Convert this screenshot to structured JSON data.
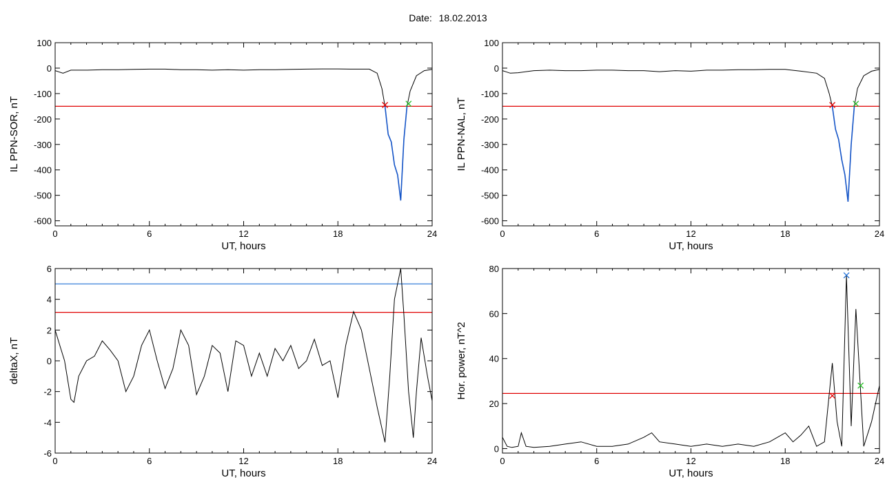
{
  "header": {
    "date_label": "Date:",
    "date_value": "18.02.2013"
  },
  "colors": {
    "threshold_red": "#e00000",
    "threshold_blue": "#1f6fd6",
    "trace": "#000000",
    "highlight_blue": "#1555c8",
    "marker_red": "#e00000",
    "marker_green": "#22bb22",
    "marker_blue": "#1f6fd6"
  },
  "chart_data": [
    {
      "type": "line",
      "xlabel": "UT, hours",
      "ylabel": "IL PPN-SOR, nT",
      "xlim": [
        0,
        24
      ],
      "ylim": [
        -620,
        100
      ],
      "xticks": [
        "0",
        "6",
        "12",
        "18",
        "24"
      ],
      "yticks": [
        "100",
        "0",
        "-100",
        "-200",
        "-300",
        "-400",
        "-500",
        "-600"
      ],
      "hline": {
        "y": -150,
        "color": "red"
      },
      "series": [
        {
          "x": [
            0,
            0.5,
            1,
            2,
            3,
            4,
            5,
            6,
            7,
            8,
            9,
            10,
            11,
            12,
            13,
            14,
            15,
            16,
            17,
            18,
            19,
            20,
            20.5,
            20.8,
            21,
            21.2,
            21.4,
            21.6,
            21.8,
            22,
            22.2,
            22.4,
            22.6,
            23,
            23.5,
            24
          ],
          "y": [
            -10,
            -20,
            -8,
            -8,
            -6,
            -6,
            -5,
            -4,
            -4,
            -6,
            -6,
            -8,
            -6,
            -8,
            -6,
            -6,
            -5,
            -4,
            -3,
            -3,
            -4,
            -4,
            -20,
            -80,
            -150,
            -260,
            -290,
            -380,
            -420,
            -520,
            -280,
            -150,
            -90,
            -30,
            -10,
            -5
          ]
        }
      ],
      "highlight_segment": {
        "x_from": 21.0,
        "x_to": 22.5,
        "color": "blue"
      },
      "markers": [
        {
          "x": 21.0,
          "y": -145,
          "color": "red"
        },
        {
          "x": 22.5,
          "y": -140,
          "color": "green"
        }
      ]
    },
    {
      "type": "line",
      "xlabel": "UT, hours",
      "ylabel": "IL PPN-NAL, nT",
      "xlim": [
        0,
        24
      ],
      "ylim": [
        -620,
        100
      ],
      "xticks": [
        "0",
        "6",
        "12",
        "18",
        "24"
      ],
      "yticks": [
        "100",
        "0",
        "-100",
        "-200",
        "-300",
        "-400",
        "-500",
        "-600"
      ],
      "hline": {
        "y": -150,
        "color": "red"
      },
      "series": [
        {
          "x": [
            0,
            0.5,
            1,
            2,
            3,
            4,
            5,
            6,
            7,
            8,
            9,
            10,
            11,
            12,
            13,
            14,
            15,
            16,
            17,
            18,
            19,
            20,
            20.5,
            20.8,
            21,
            21.2,
            21.4,
            21.6,
            21.8,
            22,
            22.2,
            22.4,
            22.6,
            23,
            23.5,
            24
          ],
          "y": [
            -10,
            -20,
            -18,
            -10,
            -8,
            -10,
            -10,
            -8,
            -8,
            -10,
            -10,
            -14,
            -10,
            -12,
            -8,
            -8,
            -6,
            -6,
            -5,
            -5,
            -12,
            -20,
            -40,
            -100,
            -150,
            -240,
            -280,
            -360,
            -420,
            -525,
            -300,
            -150,
            -80,
            -30,
            -12,
            -5
          ]
        }
      ],
      "highlight_segment": {
        "x_from": 21.0,
        "x_to": 22.5,
        "color": "blue"
      },
      "markers": [
        {
          "x": 21.0,
          "y": -145,
          "color": "red"
        },
        {
          "x": 22.5,
          "y": -140,
          "color": "green"
        }
      ]
    },
    {
      "type": "line",
      "xlabel": "UT, hours",
      "ylabel": "deltaX, nT",
      "xlim": [
        0,
        24
      ],
      "ylim": [
        -6,
        6
      ],
      "xticks": [
        "0",
        "6",
        "12",
        "18",
        "24"
      ],
      "yticks": [
        "6",
        "4",
        "2",
        "0",
        "-2",
        "-4",
        "-6"
      ],
      "hlines": [
        {
          "y": 5.0,
          "color": "blue"
        },
        {
          "y": 3.15,
          "color": "red"
        }
      ],
      "series": [
        {
          "x": [
            0,
            0.3,
            0.6,
            1,
            1.2,
            1.5,
            2,
            2.5,
            3,
            3.5,
            4,
            4.5,
            5,
            5.5,
            6,
            6.5,
            7,
            7.5,
            8,
            8.5,
            9,
            9.5,
            10,
            10.5,
            11,
            11.5,
            12,
            12.5,
            13,
            13.5,
            14,
            14.5,
            15,
            15.5,
            16,
            16.5,
            17,
            17.5,
            18,
            18.5,
            19,
            19.5,
            20,
            20.5,
            21,
            21.3,
            21.6,
            22,
            22.2,
            22.5,
            22.8,
            23,
            23.3,
            23.7,
            24
          ],
          "y": [
            2,
            1,
            0,
            -2.5,
            -2.7,
            -1,
            0,
            0.3,
            1.3,
            0.7,
            0,
            -2,
            -1,
            1,
            2,
            0,
            -1.8,
            -0.5,
            2,
            1,
            -2.2,
            -1,
            1,
            0.5,
            -2,
            1.3,
            1,
            -1,
            0.5,
            -1,
            0.8,
            0,
            1,
            -0.5,
            0,
            1.4,
            -0.3,
            0,
            -2.4,
            1,
            3.2,
            2,
            -0.5,
            -3,
            -5.3,
            -1,
            4,
            6,
            3,
            -2,
            -5,
            -2,
            1.5,
            -1,
            -2.6
          ]
        }
      ]
    },
    {
      "type": "line",
      "xlabel": "UT, hours",
      "ylabel": "Hor. power, nT^2",
      "xlim": [
        0,
        24
      ],
      "ylim": [
        -2,
        80
      ],
      "xticks": [
        "0",
        "6",
        "12",
        "18",
        "24"
      ],
      "yticks": [
        "80",
        "60",
        "40",
        "20",
        "0"
      ],
      "hline": {
        "y": 24.5,
        "color": "red"
      },
      "series": [
        {
          "x": [
            0,
            0.3,
            0.6,
            1,
            1.2,
            1.5,
            2,
            3,
            4,
            5,
            6,
            7,
            8,
            9,
            9.5,
            10,
            11,
            12,
            13,
            14,
            15,
            16,
            17,
            18,
            18.5,
            19,
            19.5,
            20,
            20.5,
            21,
            21.3,
            21.6,
            21.9,
            22.2,
            22.5,
            22.8,
            23,
            23.5,
            24
          ],
          "y": [
            5,
            1,
            0.5,
            1,
            7,
            1,
            0.5,
            1,
            2,
            3,
            1,
            1,
            2,
            5,
            7,
            3,
            2,
            1,
            2,
            1,
            2,
            1,
            3,
            7,
            3,
            6,
            10,
            1,
            3,
            38,
            12,
            1,
            77,
            10,
            62,
            25,
            1,
            12,
            28
          ]
        }
      ],
      "markers": [
        {
          "x": 21.0,
          "y": 23.5,
          "color": "red"
        },
        {
          "x": 21.9,
          "y": 77.0,
          "color": "blue"
        },
        {
          "x": 22.8,
          "y": 28.0,
          "color": "green"
        }
      ]
    }
  ]
}
